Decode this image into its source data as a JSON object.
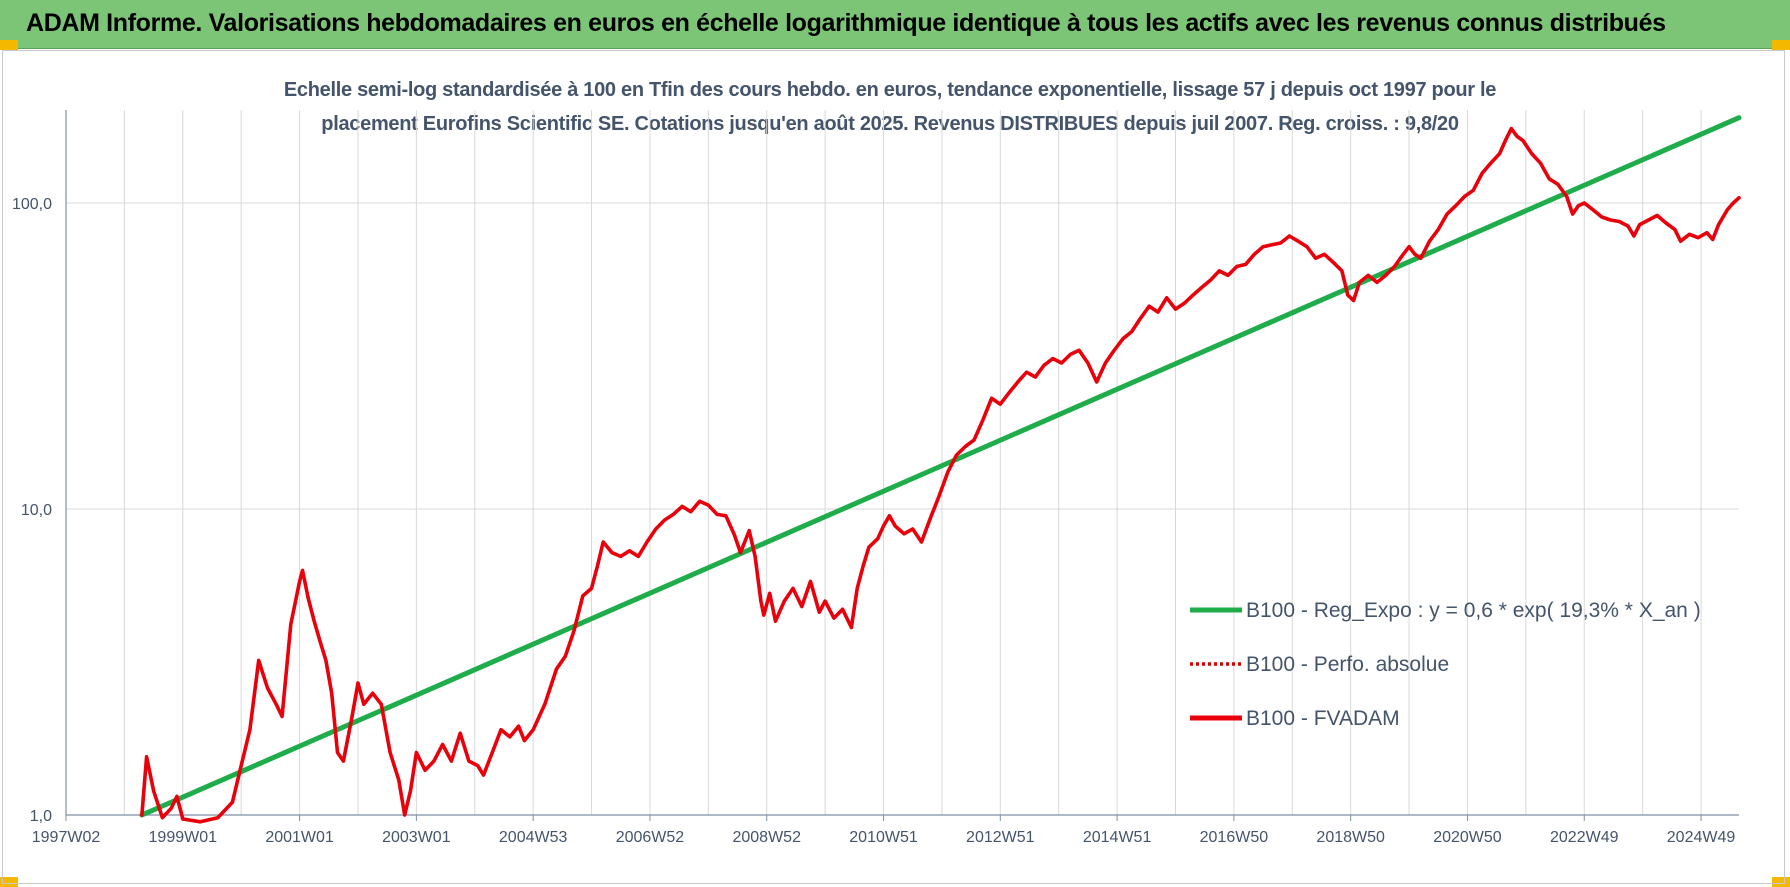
{
  "header": {
    "title": "ADAM Informe. Valorisations hebdomadaires en euros en échelle logarithmique identique à tous les actifs avec les revenus connus distribués"
  },
  "colors": {
    "banner": "#7cc576",
    "corner": "#f5b800",
    "regression": "#1fac4b",
    "fvadam": "#e8000b",
    "perfo": "#d40000",
    "text": "#44546a",
    "grid": "#d9d9d9"
  },
  "chart_data": {
    "type": "line",
    "title_line1": "Echelle semi-log standardisée à 100 en Tfin des cours hebdo. en euros, tendance exponentielle, lissage 57 j depuis oct 1997 pour le",
    "title_line2": "placement Eurofins Scientific SE. Cotations jusqu'en août 2025. Revenus DISTRIBUES depuis juil 2007. Reg. croiss. : 9,8/20",
    "yscale": "log",
    "ylim": [
      1,
      200
    ],
    "xlim": [
      1997.0,
      2025.65
    ],
    "y_ticks": [
      {
        "value": 1,
        "label": "1,0"
      },
      {
        "value": 10,
        "label": "10,0"
      },
      {
        "value": 100,
        "label": "100,0"
      }
    ],
    "x_ticks": [
      {
        "value": 1997.0,
        "label": "1997W02"
      },
      {
        "value": 1999.0,
        "label": "1999W01"
      },
      {
        "value": 2001.0,
        "label": "2001W01"
      },
      {
        "value": 2003.0,
        "label": "2003W01"
      },
      {
        "value": 2005.0,
        "label": "2004W53"
      },
      {
        "value": 2007.0,
        "label": "2006W52"
      },
      {
        "value": 2009.0,
        "label": "2008W52"
      },
      {
        "value": 2011.0,
        "label": "2010W51"
      },
      {
        "value": 2013.0,
        "label": "2012W51"
      },
      {
        "value": 2015.0,
        "label": "2014W51"
      },
      {
        "value": 2017.0,
        "label": "2016W50"
      },
      {
        "value": 2019.0,
        "label": "2018W50"
      },
      {
        "value": 2021.0,
        "label": "2020W50"
      },
      {
        "value": 2023.0,
        "label": "2022W49"
      },
      {
        "value": 2025.0,
        "label": "2024W49"
      }
    ],
    "grid": true,
    "legend_position": "bottom-right",
    "series": [
      {
        "name": "B100 - Reg_Expo : y = 0,6 * exp( 19,3% *  X_an )",
        "style": "solid",
        "points": [
          [
            1998.3,
            1.0
          ],
          [
            2025.65,
            190.0
          ]
        ]
      },
      {
        "name": "B100 - Perfo. absolue",
        "style": "dotted",
        "points": []
      },
      {
        "name": "B100 - FVADAM",
        "style": "solid",
        "points": [
          [
            1998.3,
            1.0
          ],
          [
            1998.38,
            1.55
          ],
          [
            1998.5,
            1.2
          ],
          [
            1998.65,
            0.98
          ],
          [
            1998.8,
            1.05
          ],
          [
            1998.9,
            1.15
          ],
          [
            1999.0,
            0.97
          ],
          [
            1999.3,
            0.95
          ],
          [
            1999.6,
            0.98
          ],
          [
            1999.85,
            1.1
          ],
          [
            2000.0,
            1.45
          ],
          [
            2000.15,
            1.9
          ],
          [
            2000.3,
            3.2
          ],
          [
            2000.45,
            2.6
          ],
          [
            2000.6,
            2.3
          ],
          [
            2000.7,
            2.1
          ],
          [
            2000.85,
            4.2
          ],
          [
            2001.0,
            5.8
          ],
          [
            2001.05,
            6.3
          ],
          [
            2001.15,
            5.1
          ],
          [
            2001.25,
            4.3
          ],
          [
            2001.35,
            3.7
          ],
          [
            2001.45,
            3.2
          ],
          [
            2001.55,
            2.5
          ],
          [
            2001.65,
            1.6
          ],
          [
            2001.75,
            1.5
          ],
          [
            2001.9,
            2.1
          ],
          [
            2002.0,
            2.7
          ],
          [
            2002.1,
            2.3
          ],
          [
            2002.25,
            2.5
          ],
          [
            2002.4,
            2.3
          ],
          [
            2002.55,
            1.6
          ],
          [
            2002.7,
            1.3
          ],
          [
            2002.8,
            1.0
          ],
          [
            2002.9,
            1.2
          ],
          [
            2003.0,
            1.6
          ],
          [
            2003.15,
            1.4
          ],
          [
            2003.3,
            1.5
          ],
          [
            2003.45,
            1.7
          ],
          [
            2003.6,
            1.5
          ],
          [
            2003.75,
            1.85
          ],
          [
            2003.9,
            1.5
          ],
          [
            2004.05,
            1.45
          ],
          [
            2004.15,
            1.35
          ],
          [
            2004.3,
            1.6
          ],
          [
            2004.45,
            1.9
          ],
          [
            2004.6,
            1.8
          ],
          [
            2004.75,
            1.95
          ],
          [
            2004.85,
            1.75
          ],
          [
            2005.0,
            1.9
          ],
          [
            2005.2,
            2.3
          ],
          [
            2005.4,
            3.0
          ],
          [
            2005.55,
            3.3
          ],
          [
            2005.7,
            4.0
          ],
          [
            2005.85,
            5.2
          ],
          [
            2006.0,
            5.5
          ],
          [
            2006.1,
            6.5
          ],
          [
            2006.2,
            7.8
          ],
          [
            2006.35,
            7.2
          ],
          [
            2006.5,
            7.0
          ],
          [
            2006.65,
            7.3
          ],
          [
            2006.8,
            7.0
          ],
          [
            2006.95,
            7.8
          ],
          [
            2007.1,
            8.6
          ],
          [
            2007.25,
            9.2
          ],
          [
            2007.4,
            9.6
          ],
          [
            2007.55,
            10.2
          ],
          [
            2007.7,
            9.8
          ],
          [
            2007.85,
            10.6
          ],
          [
            2008.0,
            10.3
          ],
          [
            2008.15,
            9.6
          ],
          [
            2008.3,
            9.5
          ],
          [
            2008.45,
            8.2
          ],
          [
            2008.55,
            7.2
          ],
          [
            2008.7,
            8.5
          ],
          [
            2008.8,
            7.0
          ],
          [
            2008.9,
            5.0
          ],
          [
            2008.95,
            4.5
          ],
          [
            2009.05,
            5.3
          ],
          [
            2009.15,
            4.3
          ],
          [
            2009.3,
            5.0
          ],
          [
            2009.45,
            5.5
          ],
          [
            2009.6,
            4.8
          ],
          [
            2009.75,
            5.8
          ],
          [
            2009.9,
            4.6
          ],
          [
            2010.0,
            5.0
          ],
          [
            2010.15,
            4.4
          ],
          [
            2010.3,
            4.7
          ],
          [
            2010.45,
            4.1
          ],
          [
            2010.55,
            5.5
          ],
          [
            2010.65,
            6.5
          ],
          [
            2010.75,
            7.5
          ],
          [
            2010.9,
            8.0
          ],
          [
            2011.0,
            8.8
          ],
          [
            2011.1,
            9.5
          ],
          [
            2011.2,
            8.8
          ],
          [
            2011.35,
            8.3
          ],
          [
            2011.5,
            8.6
          ],
          [
            2011.65,
            7.8
          ],
          [
            2011.8,
            9.3
          ],
          [
            2011.95,
            11.0
          ],
          [
            2012.1,
            13.2
          ],
          [
            2012.25,
            15.0
          ],
          [
            2012.4,
            16.0
          ],
          [
            2012.55,
            16.8
          ],
          [
            2012.7,
            19.5
          ],
          [
            2012.85,
            23.0
          ],
          [
            2013.0,
            22.0
          ],
          [
            2013.15,
            24.0
          ],
          [
            2013.3,
            26.0
          ],
          [
            2013.45,
            28.0
          ],
          [
            2013.6,
            27.0
          ],
          [
            2013.75,
            29.5
          ],
          [
            2013.9,
            31.0
          ],
          [
            2014.05,
            30.0
          ],
          [
            2014.2,
            32.0
          ],
          [
            2014.35,
            33.0
          ],
          [
            2014.5,
            30.0
          ],
          [
            2014.65,
            26.0
          ],
          [
            2014.8,
            30.0
          ],
          [
            2014.95,
            33.0
          ],
          [
            2015.1,
            36.0
          ],
          [
            2015.25,
            38.0
          ],
          [
            2015.4,
            42.0
          ],
          [
            2015.55,
            46.0
          ],
          [
            2015.7,
            44.0
          ],
          [
            2015.85,
            49.0
          ],
          [
            2016.0,
            45.0
          ],
          [
            2016.15,
            47.0
          ],
          [
            2016.3,
            50.0
          ],
          [
            2016.45,
            53.0
          ],
          [
            2016.6,
            56.0
          ],
          [
            2016.75,
            60.0
          ],
          [
            2016.9,
            58.0
          ],
          [
            2017.05,
            62.0
          ],
          [
            2017.2,
            63.0
          ],
          [
            2017.35,
            68.0
          ],
          [
            2017.5,
            72.0
          ],
          [
            2017.65,
            73.0
          ],
          [
            2017.8,
            74.0
          ],
          [
            2017.95,
            78.0
          ],
          [
            2018.1,
            75.0
          ],
          [
            2018.25,
            72.0
          ],
          [
            2018.4,
            66.0
          ],
          [
            2018.55,
            68.0
          ],
          [
            2018.7,
            64.0
          ],
          [
            2018.85,
            60.0
          ],
          [
            2018.95,
            50.0
          ],
          [
            2019.05,
            48.0
          ],
          [
            2019.15,
            55.0
          ],
          [
            2019.3,
            58.0
          ],
          [
            2019.45,
            55.0
          ],
          [
            2019.6,
            58.0
          ],
          [
            2019.75,
            62.0
          ],
          [
            2019.9,
            68.0
          ],
          [
            2020.0,
            72.0
          ],
          [
            2020.1,
            68.0
          ],
          [
            2020.2,
            66.0
          ],
          [
            2020.35,
            75.0
          ],
          [
            2020.5,
            82.0
          ],
          [
            2020.65,
            92.0
          ],
          [
            2020.8,
            98.0
          ],
          [
            2020.95,
            105.0
          ],
          [
            2021.1,
            110.0
          ],
          [
            2021.25,
            125.0
          ],
          [
            2021.4,
            135.0
          ],
          [
            2021.55,
            145.0
          ],
          [
            2021.65,
            160.0
          ],
          [
            2021.75,
            175.0
          ],
          [
            2021.85,
            165.0
          ],
          [
            2021.95,
            160.0
          ],
          [
            2022.1,
            145.0
          ],
          [
            2022.25,
            135.0
          ],
          [
            2022.4,
            120.0
          ],
          [
            2022.55,
            115.0
          ],
          [
            2022.7,
            105.0
          ],
          [
            2022.8,
            92.0
          ],
          [
            2022.9,
            98.0
          ],
          [
            2023.0,
            100.0
          ],
          [
            2023.15,
            95.0
          ],
          [
            2023.3,
            90.0
          ],
          [
            2023.45,
            88.0
          ],
          [
            2023.6,
            87.0
          ],
          [
            2023.75,
            84.0
          ],
          [
            2023.85,
            78.0
          ],
          [
            2023.95,
            85.0
          ],
          [
            2024.1,
            88.0
          ],
          [
            2024.25,
            91.0
          ],
          [
            2024.4,
            86.0
          ],
          [
            2024.55,
            82.0
          ],
          [
            2024.65,
            75.0
          ],
          [
            2024.8,
            79.0
          ],
          [
            2024.95,
            77.0
          ],
          [
            2025.1,
            80.0
          ],
          [
            2025.2,
            76.0
          ],
          [
            2025.3,
            85.0
          ],
          [
            2025.45,
            95.0
          ],
          [
            2025.55,
            100.0
          ],
          [
            2025.65,
            104.0
          ]
        ]
      }
    ]
  }
}
